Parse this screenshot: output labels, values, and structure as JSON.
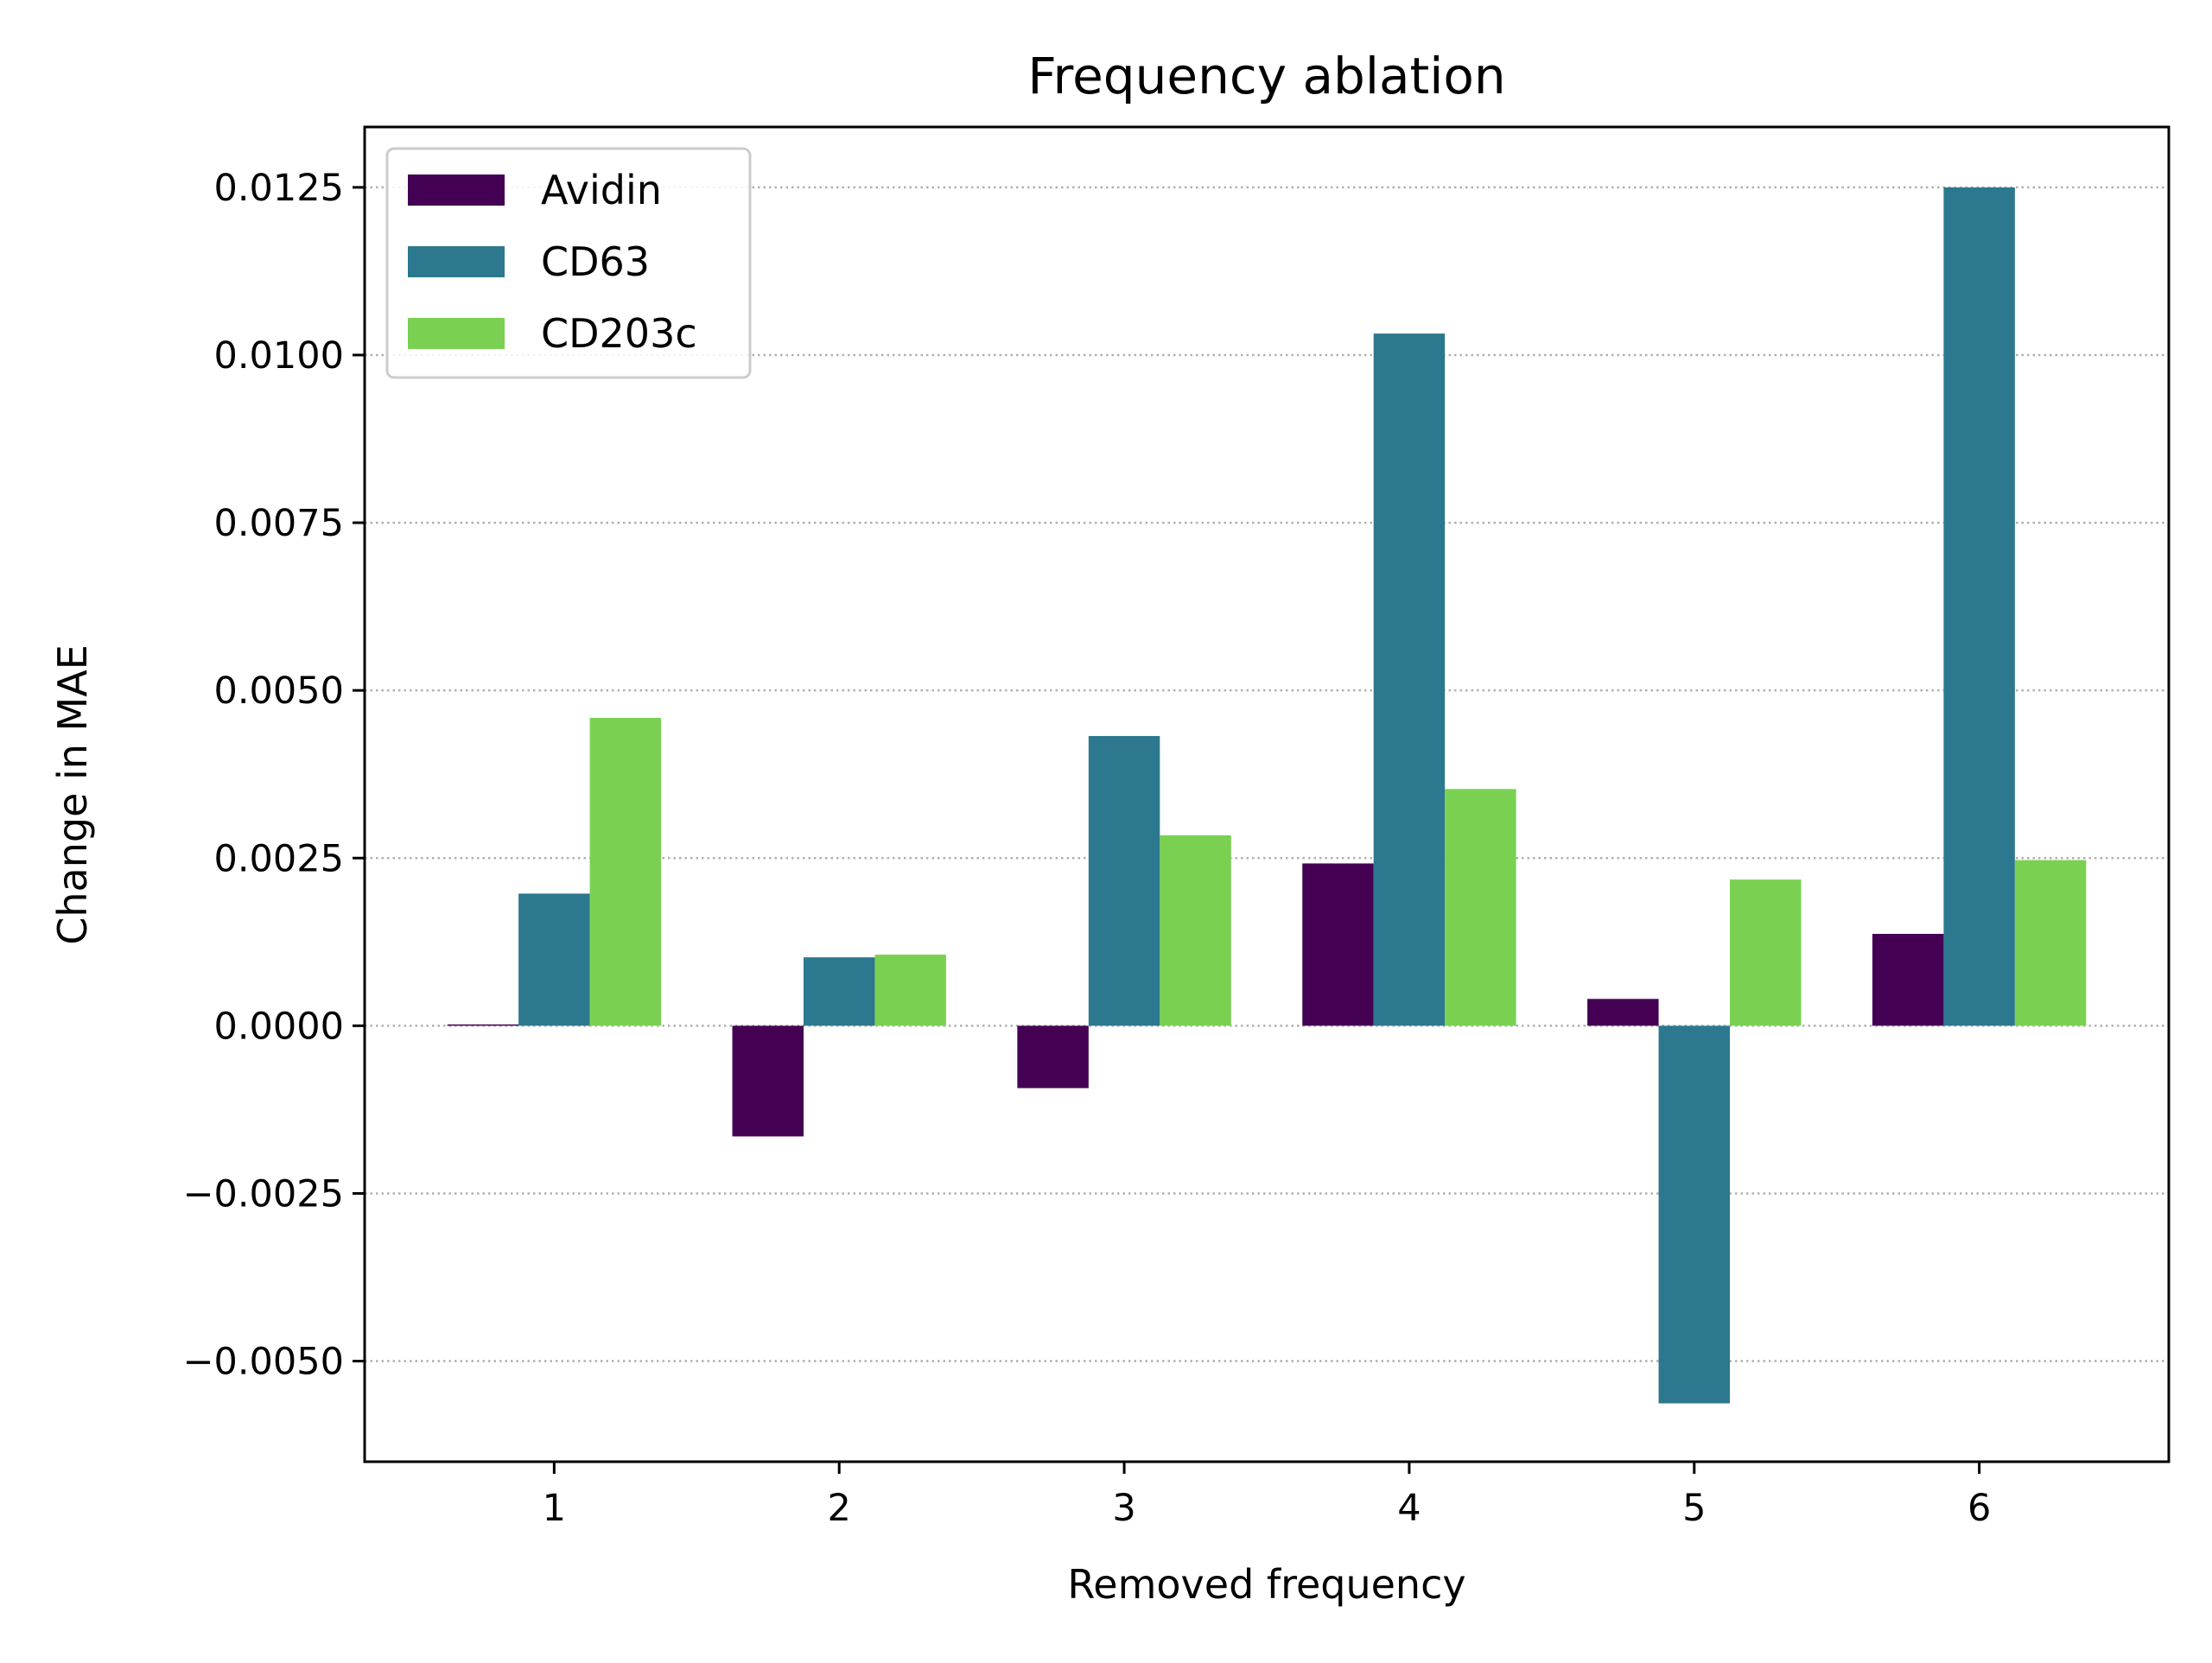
{
  "chart_data": {
    "type": "bar",
    "title": "Frequency ablation",
    "xlabel": "Removed frequency",
    "ylabel": "Change in MAE",
    "categories": [
      "1",
      "2",
      "3",
      "4",
      "5",
      "6"
    ],
    "series": [
      {
        "name": "Avidin",
        "color": "#440154",
        "values": [
          2e-05,
          -0.00165,
          -0.00093,
          0.00242,
          0.0004,
          0.00137
        ]
      },
      {
        "name": "CD63",
        "color": "#2c788e",
        "values": [
          0.00197,
          0.00102,
          0.00432,
          0.01032,
          -0.00563,
          0.0125
        ]
      },
      {
        "name": "CD203c",
        "color": "#7ad151",
        "values": [
          0.00459,
          0.00106,
          0.00284,
          0.00353,
          0.00218,
          0.00247
        ]
      }
    ],
    "ylim": [
      -0.0065,
      0.0134
    ],
    "yticks": [
      -0.005,
      -0.0025,
      0,
      0.0025,
      0.005,
      0.0075,
      0.01,
      0.0125
    ],
    "ytick_labels": [
      "−0.0050",
      "−0.0025",
      "0.0000",
      "0.0025",
      "0.0050",
      "0.0075",
      "0.0100",
      "0.0125"
    ],
    "grid": "y-dotted",
    "legend": "upper-left"
  }
}
